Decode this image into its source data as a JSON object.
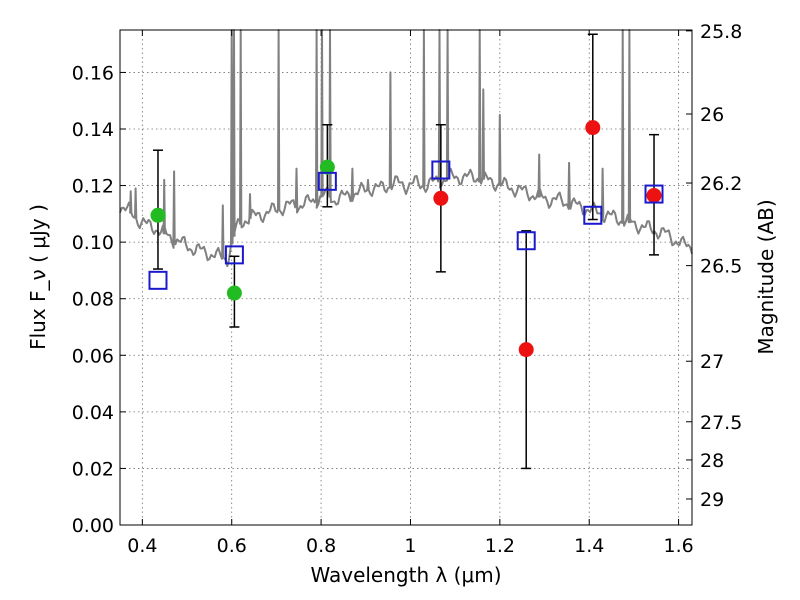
{
  "chart_data": {
    "type": "scatter",
    "xlabel": "Wavelength  λ (μm)",
    "ylabel": "Flux  F_ν  ( μJy )",
    "ylabel_right": "Magnitude (AB)",
    "xlim": [
      0.35,
      1.63
    ],
    "ylim": [
      0.0,
      0.175
    ],
    "grid": true,
    "x_ticks": [
      0.4,
      0.6,
      0.8,
      1.0,
      1.2,
      1.4,
      1.6
    ],
    "x_tick_labels": [
      "0.4",
      "0.6",
      "0.8",
      "1",
      "1.2",
      "1.4",
      "1.6"
    ],
    "y_ticks": [
      0.0,
      0.02,
      0.04,
      0.06,
      0.08,
      0.1,
      0.12,
      0.14,
      0.16
    ],
    "y_tick_labels": [
      "0.00",
      "0.02",
      "0.04",
      "0.06",
      "0.08",
      "0.10",
      "0.12",
      "0.14",
      "0.16"
    ],
    "right_ticks": [
      {
        "label": "25.8",
        "flux": 0.1747
      },
      {
        "label": "26",
        "flux": 0.1453
      },
      {
        "label": "26.2",
        "flux": 0.1209
      },
      {
        "label": "26.5",
        "flux": 0.0917
      },
      {
        "label": "27",
        "flux": 0.0579
      },
      {
        "label": "27.5",
        "flux": 0.0365
      },
      {
        "label": "28",
        "flux": 0.023
      },
      {
        "label": "29",
        "flux": 0.0092
      }
    ],
    "series": [
      {
        "marker": "circle-filled",
        "color": "#22bb22",
        "points": [
          {
            "x": 0.435,
            "y": 0.1095,
            "yerr_low": null,
            "yerr_high": null
          },
          {
            "x": 0.606,
            "y": 0.082,
            "yerr_low": null,
            "yerr_high": null
          },
          {
            "x": 0.814,
            "y": 0.1265,
            "yerr_low": null,
            "yerr_high": null
          }
        ]
      },
      {
        "marker": "circle-filled",
        "color": "#ee1111",
        "points": [
          {
            "x": 1.068,
            "y": 0.1155,
            "yerr_low": 0.0895,
            "yerr_high": 0.1415
          },
          {
            "x": 1.259,
            "y": 0.062,
            "yerr_low": 0.02,
            "yerr_high": 0.104
          },
          {
            "x": 1.408,
            "y": 0.1405,
            "yerr_low": 0.108,
            "yerr_high": 0.1735
          },
          {
            "x": 1.545,
            "y": 0.1165,
            "yerr_low": 0.0955,
            "yerr_high": 0.138
          }
        ]
      },
      {
        "marker": "square-open",
        "color": "#1a1acc",
        "points": [
          {
            "x": 0.435,
            "y": 0.0865
          },
          {
            "x": 0.606,
            "y": 0.0955
          },
          {
            "x": 0.814,
            "y": 0.1215
          },
          {
            "x": 1.068,
            "y": 0.1255
          },
          {
            "x": 1.259,
            "y": 0.1005
          },
          {
            "x": 1.408,
            "y": 0.1095
          },
          {
            "x": 1.545,
            "y": 0.117
          }
        ]
      },
      {
        "marker": "errorbar-only",
        "color": "#000000",
        "points": [
          {
            "x": 0.435,
            "yerr_low": 0.0905,
            "yerr_high": 0.1325
          },
          {
            "x": 0.606,
            "yerr_low": 0.07,
            "yerr_high": 0.095
          },
          {
            "x": 0.814,
            "yerr_low": 0.1125,
            "yerr_high": 0.1415
          }
        ]
      }
    ],
    "spectrum": {
      "color": "#808080",
      "continuum": [
        [
          0.35,
          0.113
        ],
        [
          0.37,
          0.111
        ],
        [
          0.39,
          0.108
        ],
        [
          0.41,
          0.106
        ],
        [
          0.43,
          0.105
        ],
        [
          0.45,
          0.103
        ],
        [
          0.47,
          0.101
        ],
        [
          0.49,
          0.0995
        ],
        [
          0.51,
          0.098
        ],
        [
          0.53,
          0.097
        ],
        [
          0.55,
          0.096
        ],
        [
          0.57,
          0.095
        ],
        [
          0.59,
          0.094
        ],
        [
          0.61,
          0.105
        ],
        [
          0.63,
          0.108
        ],
        [
          0.65,
          0.109
        ],
        [
          0.67,
          0.11
        ],
        [
          0.69,
          0.111
        ],
        [
          0.71,
          0.112
        ],
        [
          0.73,
          0.113
        ],
        [
          0.75,
          0.113
        ],
        [
          0.77,
          0.114
        ],
        [
          0.79,
          0.115
        ],
        [
          0.81,
          0.117
        ],
        [
          0.83,
          0.115
        ],
        [
          0.85,
          0.116
        ],
        [
          0.87,
          0.117
        ],
        [
          0.89,
          0.118
        ],
        [
          0.91,
          0.119
        ],
        [
          0.93,
          0.119
        ],
        [
          0.95,
          0.12
        ],
        [
          0.97,
          0.121
        ],
        [
          0.99,
          0.12
        ],
        [
          1.01,
          0.121
        ],
        [
          1.03,
          0.12
        ],
        [
          1.05,
          0.121
        ],
        [
          1.07,
          0.122
        ],
        [
          1.09,
          0.123
        ],
        [
          1.11,
          0.123
        ],
        [
          1.13,
          0.123
        ],
        [
          1.15,
          0.123
        ],
        [
          1.17,
          0.122
        ],
        [
          1.19,
          0.121
        ],
        [
          1.21,
          0.12
        ],
        [
          1.23,
          0.119
        ],
        [
          1.25,
          0.118
        ],
        [
          1.27,
          0.117
        ],
        [
          1.29,
          0.116
        ],
        [
          1.31,
          0.115
        ],
        [
          1.33,
          0.115
        ],
        [
          1.35,
          0.114
        ],
        [
          1.37,
          0.113
        ],
        [
          1.39,
          0.112
        ],
        [
          1.41,
          0.111
        ],
        [
          1.43,
          0.11
        ],
        [
          1.45,
          0.109
        ],
        [
          1.47,
          0.108
        ],
        [
          1.49,
          0.107
        ],
        [
          1.51,
          0.106
        ],
        [
          1.53,
          0.105
        ],
        [
          1.55,
          0.104
        ],
        [
          1.57,
          0.103
        ],
        [
          1.59,
          0.101
        ],
        [
          1.61,
          0.099
        ],
        [
          1.63,
          0.0985
        ]
      ],
      "lines": [
        {
          "x": 0.374,
          "peak": 0.118
        },
        {
          "x": 0.385,
          "peak": 0.119
        },
        {
          "x": 0.449,
          "peak": 0.122
        },
        {
          "x": 0.471,
          "peak": 0.125
        },
        {
          "x": 0.58,
          "peak": 0.113
        },
        {
          "x": 0.6,
          "peak": 0.175
        },
        {
          "x": 0.605,
          "peak": 0.175
        },
        {
          "x": 0.62,
          "peak": 0.175
        },
        {
          "x": 0.641,
          "peak": 0.117
        },
        {
          "x": 0.705,
          "peak": 0.175
        },
        {
          "x": 0.745,
          "peak": 0.126
        },
        {
          "x": 0.79,
          "peak": 0.175
        },
        {
          "x": 0.802,
          "peak": 0.175
        },
        {
          "x": 0.82,
          "peak": 0.175
        },
        {
          "x": 0.87,
          "peak": 0.126
        },
        {
          "x": 0.905,
          "peak": 0.122
        },
        {
          "x": 0.955,
          "peak": 0.16
        },
        {
          "x": 1.03,
          "peak": 0.175
        },
        {
          "x": 1.065,
          "peak": 0.175
        },
        {
          "x": 1.083,
          "peak": 0.175
        },
        {
          "x": 1.155,
          "peak": 0.175
        },
        {
          "x": 1.163,
          "peak": 0.154
        },
        {
          "x": 1.2,
          "peak": 0.145
        },
        {
          "x": 1.288,
          "peak": 0.131
        },
        {
          "x": 1.355,
          "peak": 0.128
        },
        {
          "x": 1.43,
          "peak": 0.126
        },
        {
          "x": 1.475,
          "peak": 0.175
        },
        {
          "x": 1.49,
          "peak": 0.175
        }
      ]
    }
  }
}
